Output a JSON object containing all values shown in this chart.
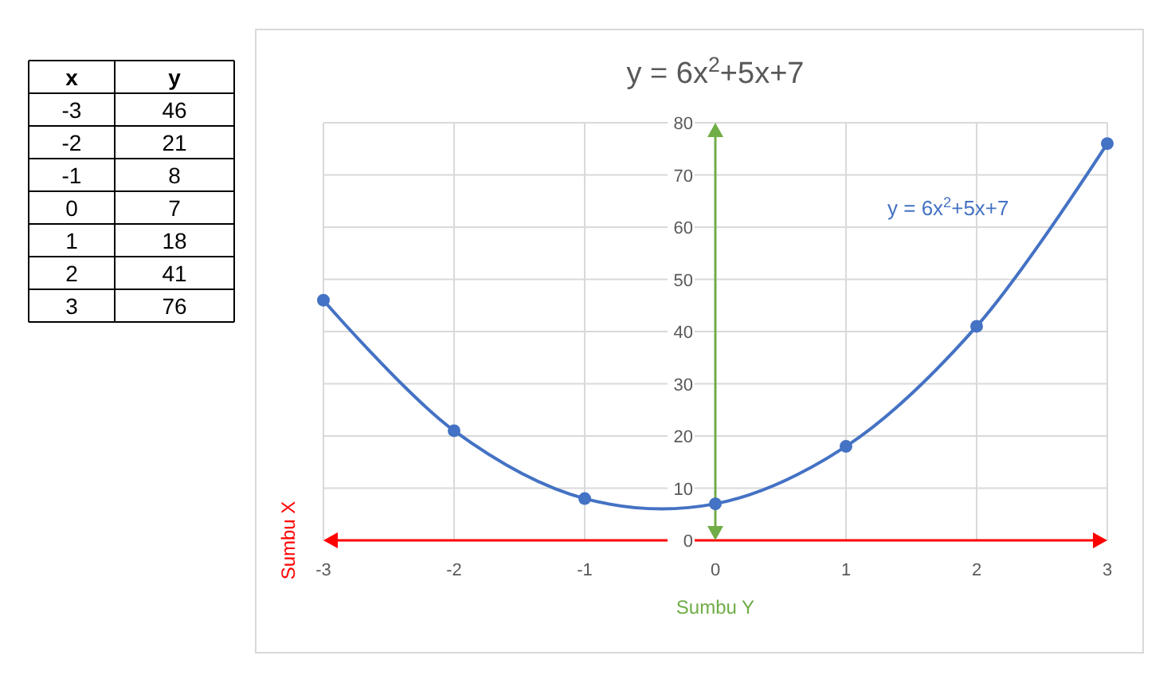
{
  "chart_data": [
    {
      "type": "heatmap",
      "ylabel": "x",
      "categories": [
        "y"
      ],
      "y_categories": [
        "-3",
        "-2",
        "-1",
        "0",
        "1",
        "2",
        "3"
      ],
      "cells": [
        [
          46
        ],
        [
          21
        ],
        [
          8
        ],
        [
          7
        ],
        [
          18
        ],
        [
          41
        ],
        [
          76
        ]
      ],
      "data_labels": true
    },
    {
      "type": "line",
      "title": "y = 6x$^{2}$+5x+7",
      "xlabel": "Sumbu Y",
      "ylabel": "Sumbu X",
      "x": [
        -3,
        -2,
        -1,
        0,
        1,
        2,
        3
      ],
      "series": [
        {
          "color": "#4472c4",
          "values": [
            46,
            21,
            8,
            7,
            18,
            41,
            76
          ]
        }
      ],
      "xlim": [
        -3,
        3
      ],
      "xticks": [
        -3,
        -2,
        -1,
        0,
        1,
        2,
        3
      ],
      "ylim": [
        0,
        80
      ],
      "yticks": [
        0,
        10,
        20,
        30,
        40,
        50,
        60,
        70,
        80
      ],
      "grid": true,
      "marker": "circle",
      "line_style": "solid",
      "annotations": [
        "y = 6x$^{2}$+5x+7"
      ]
    }
  ]
}
